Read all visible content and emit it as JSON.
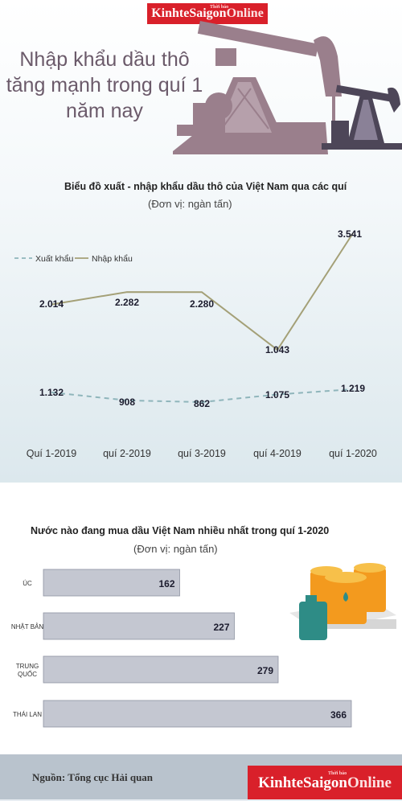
{
  "header": {
    "logo_text": "KinhteSaigon",
    "logo_suffix": "Online",
    "logo_superscript": "Thời báo",
    "headline": "Nhập khẩu dầu thô tăng mạnh trong quí 1 năm nay"
  },
  "colors": {
    "export_line": "#8fb5bb",
    "import_line": "#a4a077",
    "bars": "#c4c7d1",
    "rig": "#9a7f8c",
    "rig_dark": "#4d4658",
    "logo_red": "#d9202a"
  },
  "icons": [
    "oil-pumpjack-icon",
    "oil-barrels-icon",
    "jerrycan-icon"
  ],
  "chart_data": [
    {
      "type": "line",
      "title": "Biểu đồ xuất - nhập khẩu dầu thô của Việt Nam qua các quí",
      "subtitle": "(Đơn vị: ngàn tấn)",
      "categories": [
        "Quí 1-2019",
        "quí 2-2019",
        "quí 3-2019",
        "quí 4-2019",
        "quí 1-2020"
      ],
      "series": [
        {
          "name": "Xuất khẩu",
          "values": [
            1132,
            908,
            862,
            1075,
            1219
          ],
          "labels": [
            "1.132",
            "908",
            "862",
            "1.075",
            "1.219"
          ],
          "style": "dashed"
        },
        {
          "name": "Nhập khẩu",
          "values": [
            2014,
            2282,
            2280,
            1043,
            3541
          ],
          "labels": [
            "2.014",
            "2.282",
            "2.280",
            "1.043",
            "3.541"
          ],
          "style": "solid"
        }
      ],
      "legend": "top-left",
      "grid": false
    },
    {
      "type": "bar",
      "orientation": "horizontal",
      "title": "Nước nào đang mua dầu Việt Nam nhiều nhất trong quí 1-2020",
      "subtitle": "(Đơn vị: ngàn tấn)",
      "categories": [
        "ÚC",
        "NHẬT BẢN",
        "TRUNG QUỐC",
        "THÁI LAN"
      ],
      "values": [
        162,
        227,
        279,
        366
      ],
      "labels": [
        "162",
        "227",
        "279",
        "366"
      ],
      "grid": false
    }
  ],
  "footer": {
    "source": "Nguồn: Tổng cục Hải quan",
    "logo_text": "KinhteSaigon",
    "logo_suffix": "Online",
    "logo_superscript": "Thời báo"
  }
}
